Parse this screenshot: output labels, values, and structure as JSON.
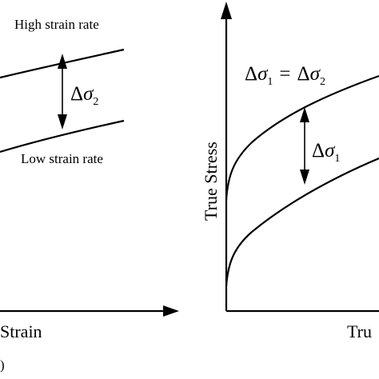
{
  "left_panel": {
    "high_label": "High strain rate",
    "low_label": "Low strain rate",
    "delta_symbol": "Δ",
    "sigma_symbol": "σ",
    "delta_subscript": "2",
    "x_axis_label": "Strain",
    "panel_tag": ")"
  },
  "right_panel": {
    "y_axis_label": "True Stress",
    "x_axis_label": "Tru",
    "equation": {
      "delta_symbol": "Δ",
      "sigma_symbol": "σ",
      "sub_left": "1",
      "equals": "=",
      "sub_right": "2"
    },
    "delta_label": {
      "delta_symbol": "Δ",
      "sigma_symbol": "σ",
      "subscript": "1"
    }
  },
  "colors": {
    "line": "#000000",
    "background": "#ffffff"
  }
}
